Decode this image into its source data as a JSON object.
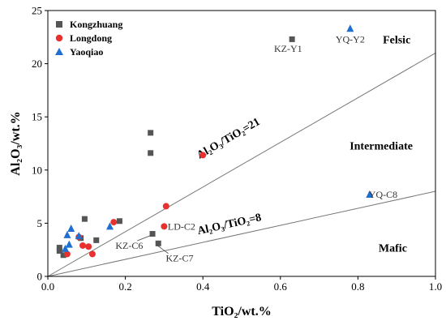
{
  "chart_data": {
    "type": "scatter",
    "xlabel": "TiO₂/wt.%",
    "ylabel": "Al₂O₃/wt.%",
    "xlim": [
      0,
      1.0
    ],
    "ylim": [
      0,
      25
    ],
    "xticks": [
      "0.0",
      "0.2",
      "0.4",
      "0.6",
      "0.8",
      "1.0"
    ],
    "yticks": [
      "0",
      "5",
      "10",
      "15",
      "20",
      "25"
    ],
    "legend_position": "top-left",
    "series": [
      {
        "name": "Kongzhuang",
        "marker": "square",
        "color": "#555555",
        "points": [
          {
            "x": 0.63,
            "y": 22.3
          },
          {
            "x": 0.265,
            "y": 13.5
          },
          {
            "x": 0.265,
            "y": 11.6
          },
          {
            "x": 0.095,
            "y": 5.4
          },
          {
            "x": 0.185,
            "y": 5.2
          },
          {
            "x": 0.27,
            "y": 4.0
          },
          {
            "x": 0.085,
            "y": 3.6
          },
          {
            "x": 0.125,
            "y": 3.4
          },
          {
            "x": 0.285,
            "y": 3.1
          },
          {
            "x": 0.03,
            "y": 2.7
          },
          {
            "x": 0.03,
            "y": 2.4
          },
          {
            "x": 0.04,
            "y": 2.0
          }
        ]
      },
      {
        "name": "Longdong",
        "marker": "circle",
        "color": "#e8312f",
        "points": [
          {
            "x": 0.4,
            "y": 11.4
          },
          {
            "x": 0.305,
            "y": 6.6
          },
          {
            "x": 0.3,
            "y": 4.7
          },
          {
            "x": 0.17,
            "y": 5.1
          },
          {
            "x": 0.08,
            "y": 3.7
          },
          {
            "x": 0.09,
            "y": 2.9
          },
          {
            "x": 0.105,
            "y": 2.8
          },
          {
            "x": 0.115,
            "y": 2.1
          },
          {
            "x": 0.05,
            "y": 2.1
          }
        ]
      },
      {
        "name": "Yaoqiao",
        "marker": "triangle",
        "color": "#1f6fd1",
        "points": [
          {
            "x": 0.78,
            "y": 23.3
          },
          {
            "x": 0.83,
            "y": 7.7
          },
          {
            "x": 0.16,
            "y": 4.7
          },
          {
            "x": 0.06,
            "y": 4.5
          },
          {
            "x": 0.05,
            "y": 3.9
          },
          {
            "x": 0.08,
            "y": 3.8
          },
          {
            "x": 0.055,
            "y": 3.0
          },
          {
            "x": 0.045,
            "y": 2.6
          }
        ]
      }
    ],
    "lines": [
      {
        "label": "Al₂O₃/TiO₂=21",
        "ratio": 21
      },
      {
        "label": "Al₂O₃/TiO₂=8",
        "ratio": 8
      }
    ],
    "regions": [
      {
        "label": "Felsic",
        "x": 0.9,
        "y": 22.3
      },
      {
        "label": "Intermediate",
        "x": 0.86,
        "y": 12.3
      },
      {
        "label": "Mafic",
        "x": 0.89,
        "y": 2.7
      }
    ],
    "annotations": [
      {
        "text": "KZ-Y1",
        "x": 0.63,
        "y": 22.3,
        "tx": 0.62,
        "ty": 21.4,
        "leader": false
      },
      {
        "text": "YQ-Y2",
        "x": 0.78,
        "y": 23.3,
        "tx": 0.78,
        "ty": 22.3,
        "leader": false
      },
      {
        "text": "YQ-C8",
        "x": 0.83,
        "y": 7.7,
        "tx": 0.865,
        "ty": 7.7,
        "leader": false
      },
      {
        "text": "LD-C2",
        "x": 0.3,
        "y": 4.7,
        "tx": 0.345,
        "ty": 4.7,
        "leader": false
      },
      {
        "text": "KZ-C6",
        "x": 0.27,
        "y": 4.0,
        "tx": 0.21,
        "ty": 2.9,
        "leader": true
      },
      {
        "text": "KZ-C7",
        "x": 0.285,
        "y": 3.1,
        "tx": 0.34,
        "ty": 1.7,
        "leader": true
      }
    ]
  }
}
